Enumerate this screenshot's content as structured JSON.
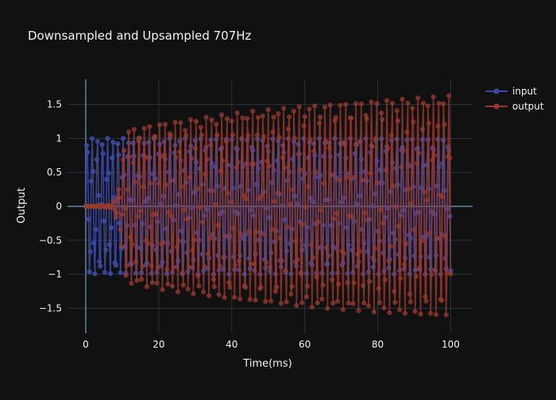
{
  "chart_data": {
    "type": "line",
    "title": "Downsampled and Upsampled 707Hz",
    "xlabel": "Time(ms)",
    "ylabel": "Output",
    "xlim": [
      -5,
      106
    ],
    "ylim": [
      -1.87,
      1.87
    ],
    "x_ticks": [
      0,
      20,
      40,
      60,
      80,
      100
    ],
    "y_ticks": [
      -1.5,
      -1,
      -0.5,
      0,
      0.5,
      1,
      1.5
    ],
    "y_tick_labels": [
      "−1.5",
      "−1",
      "−0.5",
      "0",
      "0.5",
      "1",
      "1.5"
    ],
    "grid": true,
    "legend_position": "top-right",
    "frequency_hz": 707,
    "x_range_ms": [
      0,
      100
    ],
    "series": [
      {
        "name": "input",
        "color": "#3d4aa5",
        "description": "sin(2π·707·t), amplitude 1, sampled every 0.25 ms",
        "amplitude": 1
      },
      {
        "name": "output",
        "color": "#9a3a2e",
        "description": "zero until ~7 ms, transient to ~1.15 at 11 ms, then slowly grows to ~1.63 at 100 ms",
        "envelope": [
          [
            0,
            0
          ],
          [
            7,
            0.02
          ],
          [
            9,
            0.25
          ],
          [
            10,
            0.75
          ],
          [
            11,
            1.12
          ],
          [
            20,
            1.22
          ],
          [
            40,
            1.37
          ],
          [
            60,
            1.48
          ],
          [
            80,
            1.56
          ],
          [
            100,
            1.63
          ]
        ]
      }
    ]
  },
  "legend": {
    "items": [
      {
        "label": "input",
        "color": "#3d4aa5"
      },
      {
        "label": "output",
        "color": "#9a3a2e"
      }
    ]
  }
}
